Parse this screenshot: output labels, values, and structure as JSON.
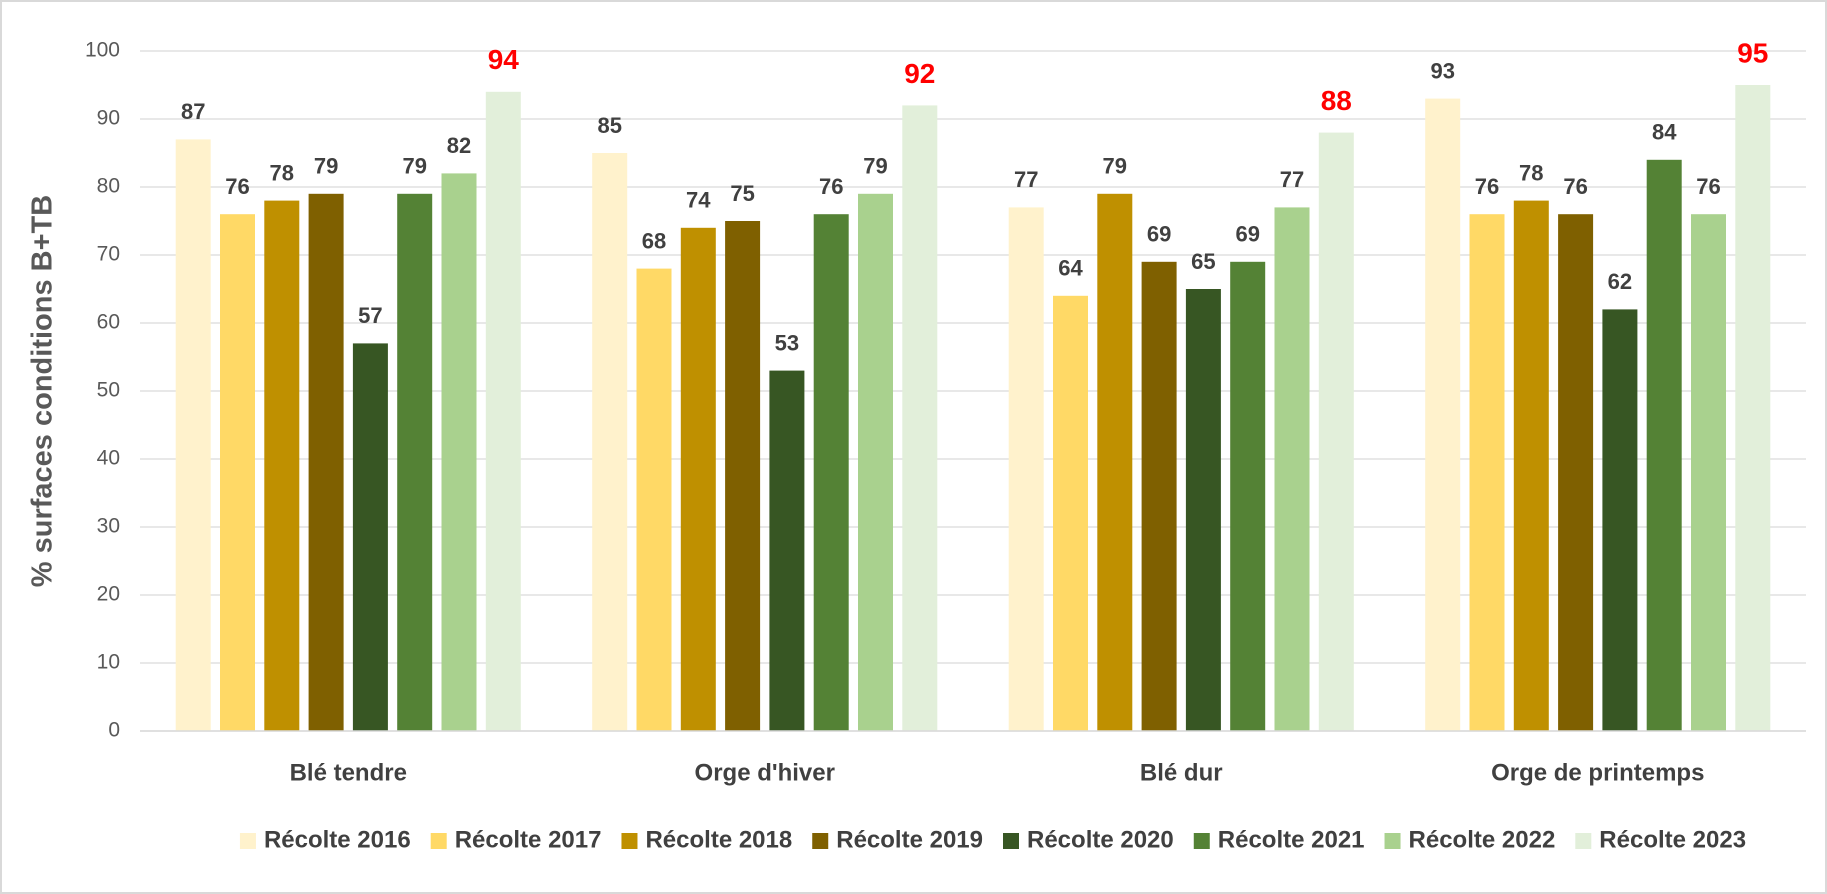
{
  "chart_data": {
    "type": "bar",
    "y_label": "% surfaces conditions B+TB",
    "categories": [
      "Blé tendre",
      "Orge d'hiver",
      "Blé dur",
      "Orge de printemps"
    ],
    "series": [
      {
        "name": "Récolte 2016",
        "color": "#fff2cc",
        "label_color": "#404040",
        "values": [
          87,
          85,
          77,
          93
        ]
      },
      {
        "name": "Récolte 2017",
        "color": "#ffd966",
        "label_color": "#404040",
        "values": [
          76,
          68,
          64,
          76
        ]
      },
      {
        "name": "Récolte 2018",
        "color": "#bf9000",
        "label_color": "#404040",
        "values": [
          78,
          74,
          79,
          78
        ]
      },
      {
        "name": "Récolte 2019",
        "color": "#7f6000",
        "label_color": "#404040",
        "values": [
          79,
          75,
          69,
          76
        ]
      },
      {
        "name": "Récolte 2020",
        "color": "#375623",
        "label_color": "#404040",
        "values": [
          57,
          53,
          65,
          62
        ]
      },
      {
        "name": "Récolte 2021",
        "color": "#548235",
        "label_color": "#404040",
        "values": [
          79,
          76,
          69,
          84
        ]
      },
      {
        "name": "Récolte 2022",
        "color": "#a9d18e",
        "label_color": "#404040",
        "values": [
          82,
          79,
          77,
          76
        ]
      },
      {
        "name": "Récolte 2023",
        "color": "#e2efda",
        "label_color": "#ff0000",
        "values": [
          94,
          92,
          88,
          95
        ]
      }
    ],
    "ylim": [
      0,
      100
    ],
    "yticks": [
      0,
      10,
      20,
      30,
      40,
      50,
      60,
      70,
      80,
      90,
      100
    ],
    "grid": true,
    "legend": "bottom"
  }
}
